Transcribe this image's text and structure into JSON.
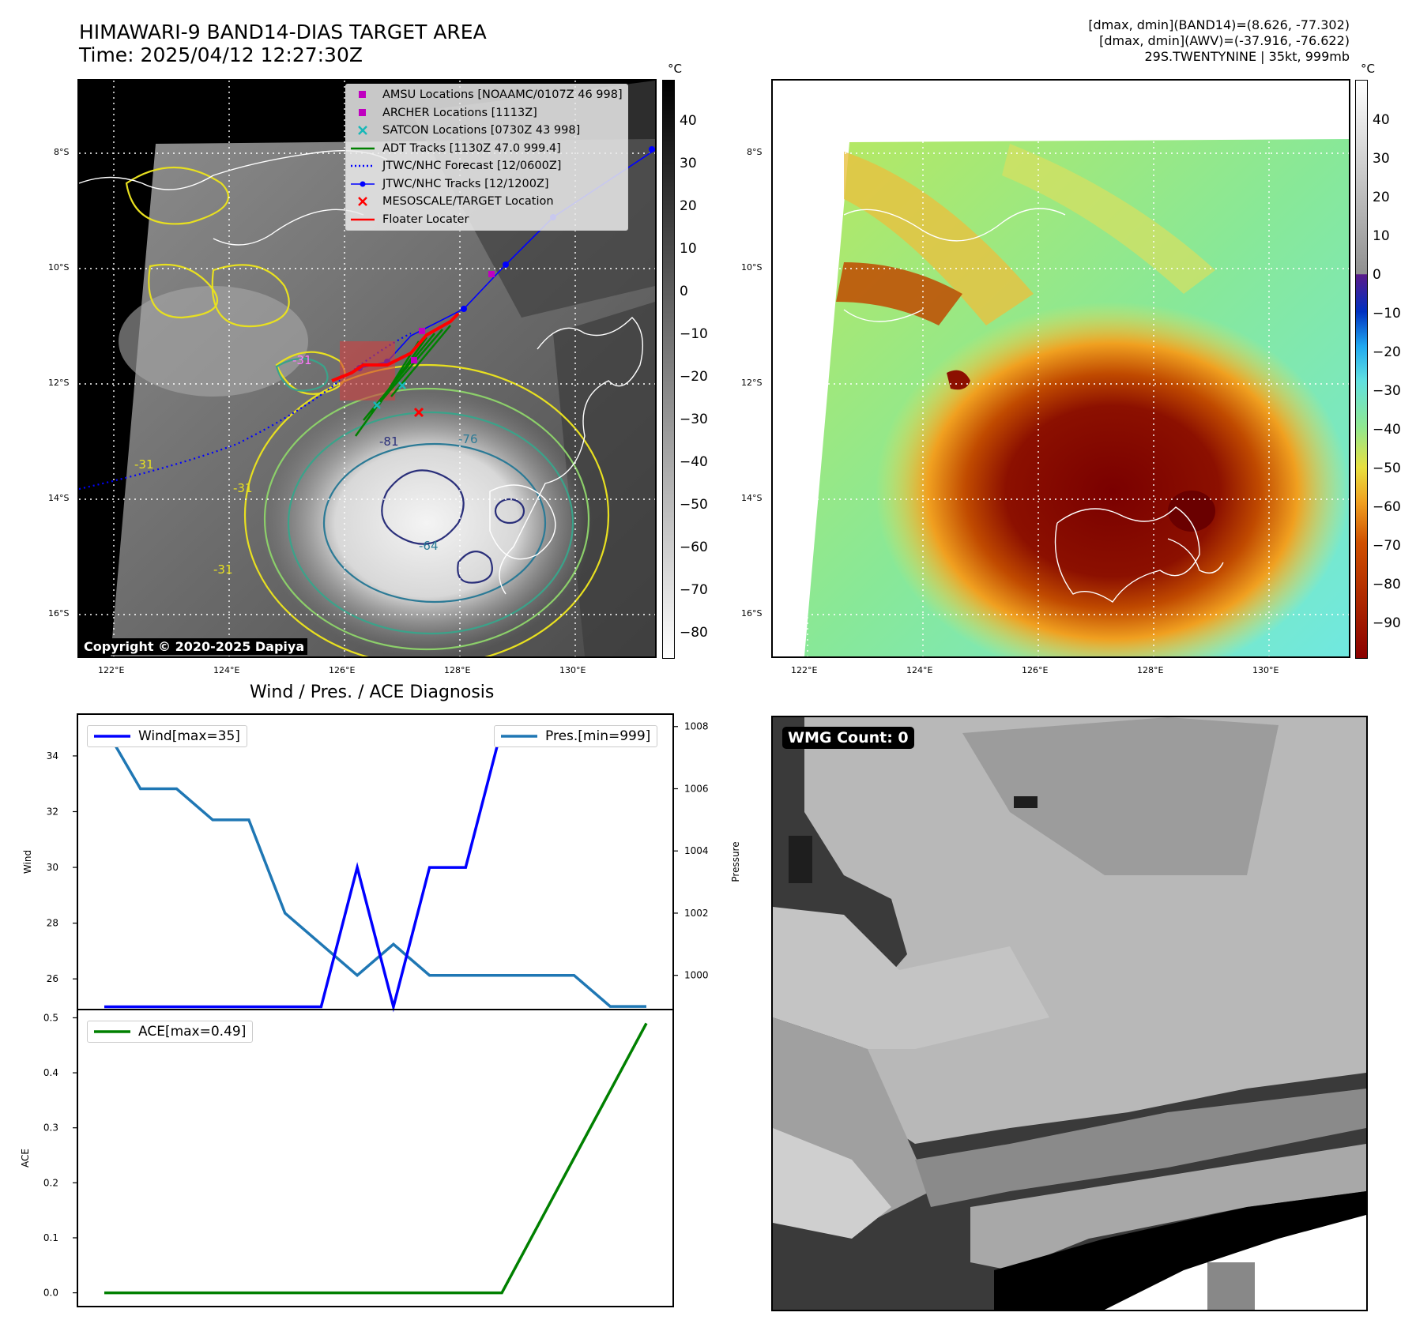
{
  "header": {
    "title_line1": "HIMAWARI-9 BAND14-DIAS TARGET AREA",
    "title_line2": "Time: 2025/04/12 12:27:30Z",
    "info_line1": "[dmax, dmin](BAND14)=(8.626, -77.302)",
    "info_line2": "[dmax, dmin](AWV)=(-37.916, -76.622)",
    "info_line3": "29S.TWENTYNINE | 35kt, 999mb"
  },
  "map": {
    "lat_labels": [
      "8°S",
      "10°S",
      "12°S",
      "14°S",
      "16°S"
    ],
    "lon_labels": [
      "122°E",
      "124°E",
      "126°E",
      "128°E",
      "130°E"
    ],
    "legend": [
      {
        "label": "AMSU Locations [NOAAMC/0107Z 46 998]",
        "symbol": "square",
        "color": "#c000c0"
      },
      {
        "label": "ARCHER Locations [1113Z]",
        "symbol": "square",
        "color": "#c000c0"
      },
      {
        "label": "SATCON Locations [0730Z 43 998]",
        "symbol": "x",
        "color": "#18b8b8"
      },
      {
        "label": "ADT Tracks [1130Z 47.0 999.4]",
        "symbol": "line",
        "color": "#008000"
      },
      {
        "label": "JTWC/NHC Forecast [12/0600Z]",
        "symbol": "dotted",
        "color": "#0000ff"
      },
      {
        "label": "JTWC/NHC Tracks [12/1200Z]",
        "symbol": "line-dot",
        "color": "#0000ff"
      },
      {
        "label": "MESOSCALE/TARGET Location",
        "symbol": "x",
        "color": "#ff0000"
      },
      {
        "label": "Floater Locater",
        "symbol": "line",
        "color": "#ff0000"
      }
    ],
    "contour_labels": [
      "-31",
      "-31",
      "-31",
      "-31",
      "-81",
      "-76",
      "-64"
    ],
    "copyright": "Copyright © 2020-2025 Dapiya",
    "colorbar_unit": "°C",
    "colorbar_ticks": [
      "40",
      "30",
      "20",
      "10",
      "0",
      "−10",
      "−20",
      "−30",
      "−40",
      "−50",
      "−60",
      "−70",
      "−80"
    ]
  },
  "awv": {
    "colorbar_unit": "°C",
    "colorbar_ticks": [
      "40",
      "30",
      "20",
      "10",
      "0",
      "−10",
      "−20",
      "−30",
      "−40",
      "−50",
      "−60",
      "−70",
      "−80",
      "−90"
    ]
  },
  "diagnosis_title": "Wind / Pres. / ACE Diagnosis",
  "wmg_label": "WMG Count: 0",
  "chart_data": [
    {
      "type": "line",
      "title": "Wind / Pres. / ACE Diagnosis",
      "ylabel": "Wind",
      "y2label": "Pressure",
      "ylim": [
        24.9,
        35.5
      ],
      "y2lim": [
        998.9,
        1008.4
      ],
      "x": [
        0,
        1,
        2,
        3,
        4,
        5,
        6,
        7,
        8,
        9,
        10,
        11,
        12,
        13,
        14,
        15
      ],
      "series": [
        {
          "name": "Wind[max=35]",
          "axis": "left",
          "color": "#0000ff",
          "values": [
            25,
            25,
            25,
            25,
            25,
            25,
            25,
            30,
            25,
            30,
            30,
            35,
            35,
            35,
            35,
            35
          ]
        },
        {
          "name": "Pres.[min=999]",
          "axis": "right",
          "color": "#1f77b4",
          "values": [
            1008,
            1006,
            1006,
            1005,
            1005,
            1002,
            1001,
            1000,
            1001,
            1000,
            1000,
            1000,
            1000,
            1000,
            999,
            999
          ]
        }
      ]
    },
    {
      "type": "line",
      "ylabel": "ACE",
      "ylim": [
        -0.025,
        0.515
      ],
      "x": [
        0,
        1,
        2,
        3,
        4,
        5,
        6,
        7,
        8,
        9,
        10,
        11,
        12,
        13,
        14,
        15
      ],
      "series": [
        {
          "name": "ACE[max=0.49]",
          "color": "#008000",
          "values": [
            0,
            0,
            0,
            0,
            0,
            0,
            0,
            0,
            0,
            0,
            0,
            0,
            0.1225,
            0.245,
            0.3675,
            0.49
          ]
        }
      ]
    }
  ]
}
